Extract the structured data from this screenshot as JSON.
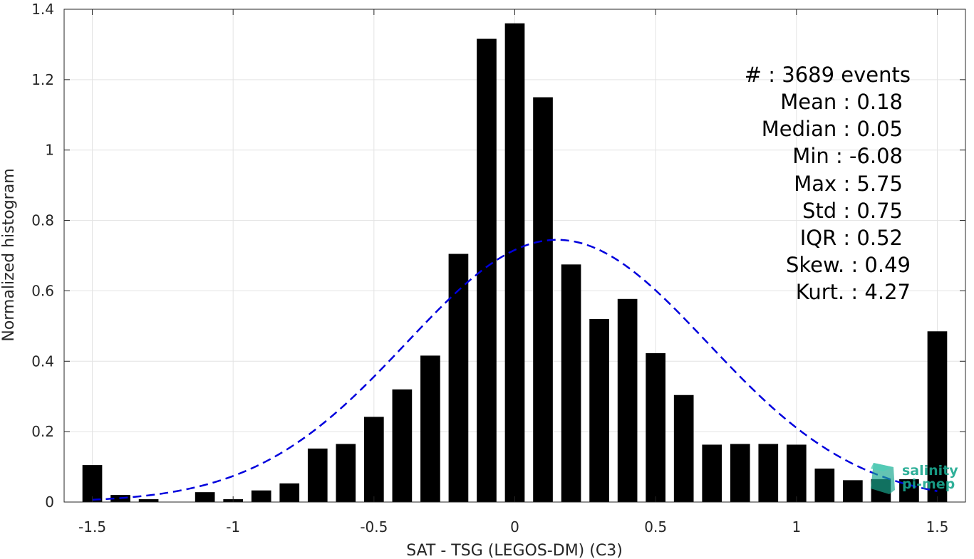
{
  "chart_data": {
    "type": "bar",
    "xlabel": "SAT - TSG (LEGOS-DM) (C3)",
    "ylabel": "Normalized histogram",
    "xlim": [
      -1.6,
      1.6
    ],
    "ylim": [
      0,
      1.4
    ],
    "xticks": [
      -1.5,
      -1,
      -0.5,
      0,
      0.5,
      1,
      1.5
    ],
    "xtick_labels": [
      "-1.5",
      "-1",
      "-0.5",
      "0",
      "0.5",
      "1",
      "1.5"
    ],
    "yticks": [
      0,
      0.2,
      0.4,
      0.6,
      0.8,
      1,
      1.2,
      1.4
    ],
    "ytick_labels": [
      "0",
      "0.2",
      "0.4",
      "0.6",
      "0.8",
      "1",
      "1.2",
      "1.4"
    ],
    "grid": true,
    "bar_width": 0.07,
    "x": [
      -1.5,
      -1.4,
      -1.3,
      -1.2,
      -1.1,
      -1.0,
      -0.9,
      -0.8,
      -0.7,
      -0.6,
      -0.5,
      -0.4,
      -0.3,
      -0.2,
      -0.1,
      0.0,
      0.1,
      0.2,
      0.3,
      0.4,
      0.5,
      0.6,
      0.7,
      0.8,
      0.9,
      1.0,
      1.1,
      1.2,
      1.3,
      1.4,
      1.5
    ],
    "values": [
      0.105,
      0.02,
      0.008,
      0.0,
      0.028,
      0.008,
      0.033,
      0.053,
      0.152,
      0.165,
      0.242,
      0.32,
      0.416,
      0.705,
      1.316,
      1.36,
      1.15,
      0.675,
      0.52,
      0.577,
      0.423,
      0.304,
      0.163,
      0.165,
      0.165,
      0.163,
      0.095,
      0.062,
      0.065,
      0.065,
      0.485
    ],
    "bar_color": "#000000",
    "fit_curve": {
      "style": "dashed",
      "color": "#0000dd",
      "mean": 0.15,
      "std": 0.535,
      "peak": 0.745,
      "x_range": [
        -1.5,
        1.5
      ]
    },
    "stats_lines": [
      "#  : 3689 events",
      "Mean : 0.18",
      "Median : 0.05",
      "Min : -6.08",
      "Max : 5.75",
      "Std : 0.75",
      "IQR : 0.52",
      "Skew. : 0.49",
      "Kurt. : 4.27"
    ]
  },
  "logo": {
    "line1": "salinity",
    "line2": "pi-mep",
    "color": "#1aa88f"
  }
}
